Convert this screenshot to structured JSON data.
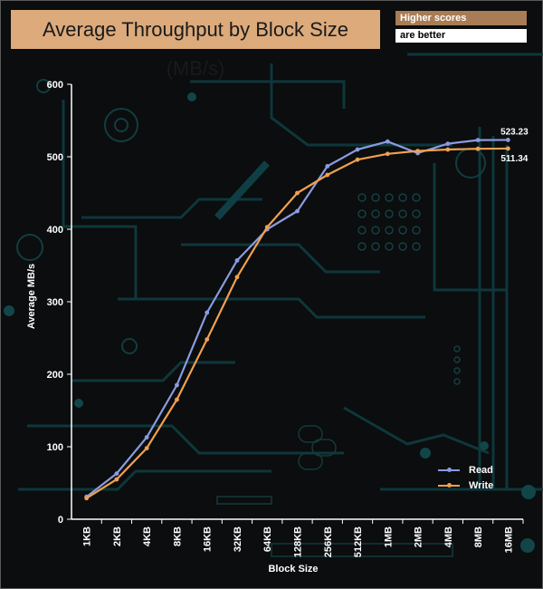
{
  "badge": {
    "line1": "Higher scores",
    "line2": "are better"
  },
  "chart_data": {
    "type": "line",
    "title": "Average Throughput by Block Size (MB/s)",
    "xlabel": "Block Size",
    "ylabel": "Average MB/s",
    "ylim": [
      0,
      600
    ],
    "yticks": [
      0,
      100,
      200,
      300,
      400,
      500,
      600
    ],
    "grid": false,
    "legend_position": "bottom-right",
    "categories": [
      "1KB",
      "2KB",
      "4KB",
      "8KB",
      "16KB",
      "32KB",
      "64KB",
      "128KB",
      "256KB",
      "512KB",
      "1MB",
      "2MB",
      "4MB",
      "8MB",
      "16MB"
    ],
    "series": [
      {
        "name": "Read",
        "color": "#8a9be0",
        "values": [
          31,
          63,
          113,
          185,
          285,
          357,
          400,
          425,
          487,
          510,
          521,
          505,
          518,
          523,
          523.23
        ],
        "end_label": "523.23"
      },
      {
        "name": "Write",
        "color": "#f0a050",
        "values": [
          29,
          55,
          98,
          165,
          248,
          334,
          403,
          450,
          475,
          496,
          504,
          508,
          510,
          511,
          511.34
        ],
        "end_label": "511.34"
      }
    ]
  }
}
